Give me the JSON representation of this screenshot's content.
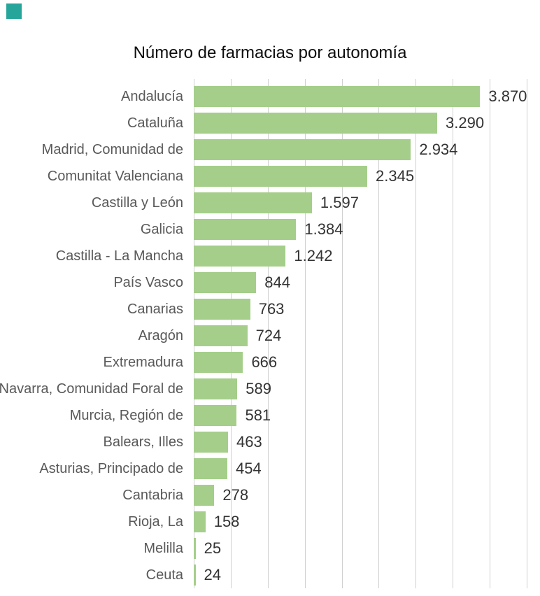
{
  "brand": {
    "color": "#26a69a"
  },
  "chart_data": {
    "type": "bar",
    "orientation": "horizontal",
    "title": "Número de farmacias por autonomía",
    "categories": [
      "Andalucía",
      "Cataluña",
      "Madrid, Comunidad de",
      "Comunitat Valenciana",
      "Castilla y León",
      "Galicia",
      "Castilla - La Mancha",
      "País Vasco",
      "Canarias",
      "Aragón",
      "Extremadura",
      "Navarra, Comunidad Foral de",
      "Murcia, Región de",
      "Balears, Illes",
      "Asturias, Principado de",
      "Cantabria",
      "Rioja, La",
      "Melilla",
      "Ceuta"
    ],
    "values": [
      3870,
      3290,
      2934,
      2345,
      1597,
      1384,
      1242,
      844,
      763,
      724,
      666,
      589,
      581,
      463,
      454,
      278,
      158,
      25,
      24
    ],
    "value_labels": [
      "3.870",
      "3.290",
      "2.934",
      "2.345",
      "1.597",
      "1.384",
      "1.242",
      "844",
      "763",
      "724",
      "666",
      "589",
      "581",
      "463",
      "454",
      "278",
      "158",
      "25",
      "24"
    ],
    "xlabel": "",
    "ylabel": "",
    "xlim": [
      0,
      4500
    ],
    "gridline_step": 500,
    "grid": true,
    "legend": "none",
    "bar_color": "#a4ce8a",
    "gridline_color": "#d0d0d0",
    "category_label_color": "#595959",
    "value_label_color": "#333333"
  }
}
